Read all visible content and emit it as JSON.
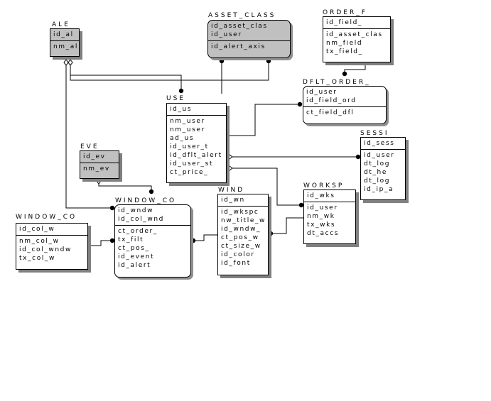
{
  "entities": {
    "ale": {
      "name": "ALE",
      "keys": [
        "id_al"
      ],
      "attrs": [
        "nm_al"
      ]
    },
    "asset_class": {
      "name": "ASSET_CLASS",
      "keys": [
        "id_asset_clas",
        "id_user"
      ],
      "attrs": [
        "id_alert_axis"
      ]
    },
    "order_f": {
      "name": "ORDER_F",
      "keys": [
        "id_field_"
      ],
      "attrs": [
        "id_asset_clas",
        "nm_field",
        "tx_field_"
      ]
    },
    "dflt_order": {
      "name": "DFLT_ORDER_",
      "keys": [
        "id_user",
        "id_field_ord"
      ],
      "attrs": [
        "ct_field_dfl"
      ]
    },
    "use": {
      "name": "USE",
      "keys": [
        "id_us"
      ],
      "attrs": [
        "nm_user",
        "nm_user",
        "ad_us",
        "id_user_t",
        "id_dflt_alert",
        "id_user_st",
        "ct_price_"
      ]
    },
    "eve": {
      "name": "EVE",
      "keys": [
        "id_ev"
      ],
      "attrs": [
        "nm_ev"
      ]
    },
    "sessi": {
      "name": "SESSI",
      "keys": [
        "id_sess"
      ],
      "attrs": [
        "id_user",
        "dt_log",
        "dt_he",
        "dt_log",
        "id_ip_a"
      ]
    },
    "worksp": {
      "name": "WORKSP",
      "keys": [
        "id_wks"
      ],
      "attrs": [
        "id_user",
        "nm_wk",
        "tx_wks",
        "dt_accs"
      ]
    },
    "wind": {
      "name": "WIND",
      "keys": [
        "id_wn"
      ],
      "attrs": [
        "id_wkspc",
        "nw_title_w",
        "id_wndw_",
        "ct_pos_w",
        "ct_size_w",
        "id_color",
        "id_font"
      ]
    },
    "window_co_mid": {
      "name": "WINDOW_CO",
      "keys": [
        "id_wndw",
        "id_col_wnd"
      ],
      "attrs": [
        "ct_order_",
        "tx_filt",
        "ct_pos_",
        "id_event",
        "id_alert"
      ]
    },
    "window_co_left": {
      "name": "WINDOW_CO",
      "keys": [
        "id_col_w"
      ],
      "attrs": [
        "nm_col_w",
        "id_col_wndw",
        "tx_col_w"
      ]
    }
  },
  "colors": {
    "dependent_fill": "#c0c0c0",
    "entity_fill": "#ffffff",
    "shadow": "#808080"
  }
}
